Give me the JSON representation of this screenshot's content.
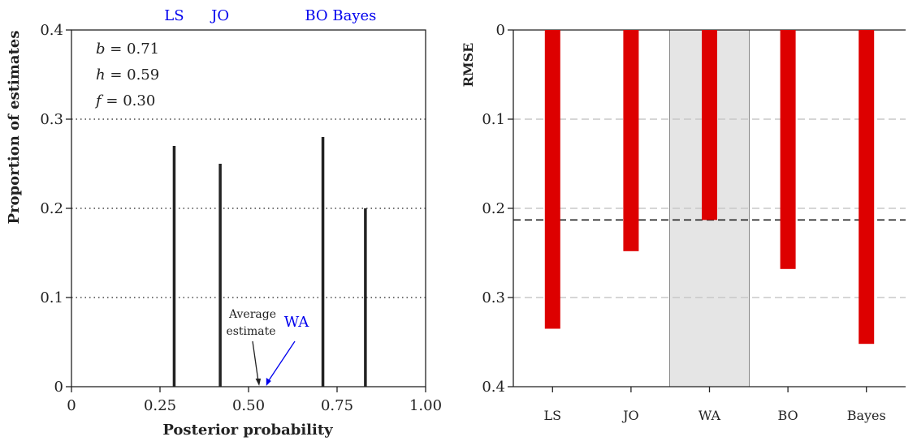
{
  "chart_data": [
    {
      "type": "bar",
      "xlabel": "Posterior probability",
      "ylabel": "Proportion of estimates",
      "xlim": [
        0,
        1.0
      ],
      "ylim": [
        0,
        0.4
      ],
      "xticks": [
        "0",
        "0.25",
        "0.50",
        "0.75",
        "1.00"
      ],
      "yticks": [
        "0",
        "0.1",
        "0.2",
        "0.3",
        "0.4"
      ],
      "grid": "dotted horizontal",
      "bars": [
        {
          "x": 0.29,
          "value": 0.27
        },
        {
          "x": 0.42,
          "value": 0.25
        },
        {
          "x": 0.71,
          "value": 0.28
        },
        {
          "x": 0.83,
          "value": 0.2
        }
      ],
      "top_labels": [
        {
          "text": "LS",
          "x": 0.29
        },
        {
          "text": "JO",
          "x": 0.42
        },
        {
          "text": "BO Bayes",
          "x": 0.76
        }
      ],
      "params": [
        {
          "sym": "b",
          "eq": " = 0.71"
        },
        {
          "sym": "h",
          "eq": " = 0.59"
        },
        {
          "sym": "f",
          "eq": " = 0.30"
        }
      ],
      "annotations": {
        "average_line1": "Average",
        "average_line2": "estimate",
        "average_x": 0.53,
        "wa_label": "WA",
        "wa_x": 0.55
      },
      "colors": {
        "bars": "#222222",
        "labels": "#0000ee"
      }
    },
    {
      "type": "bar",
      "ylabel": "RMSE",
      "ylim": [
        0,
        0.4
      ],
      "y_inverted": true,
      "yticks": [
        "0",
        "0.1",
        "0.2",
        "0.3",
        "0.4"
      ],
      "grid": "dashed horizontal",
      "categories": [
        "LS",
        "JO",
        "WA",
        "BO",
        "Bayes"
      ],
      "values": [
        0.335,
        0.248,
        0.213,
        0.268,
        0.352
      ],
      "highlighted_category": "WA",
      "reference_line": 0.213,
      "colors": {
        "bars": "#dd0000",
        "highlight": "#e5e5e5",
        "reference": "#222222"
      }
    }
  ]
}
